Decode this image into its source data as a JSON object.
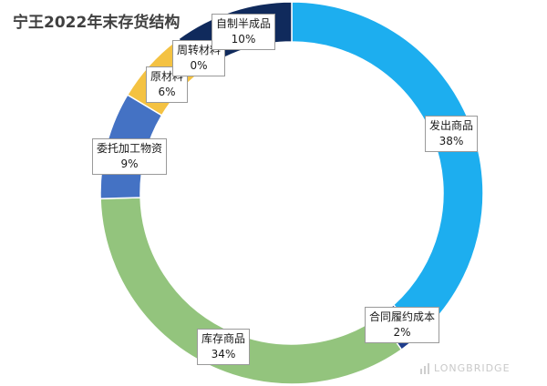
{
  "chart_data": {
    "type": "pie",
    "variant": "donut",
    "title": "宁王2022年末存货结构",
    "slices": [
      {
        "name": "发出商品",
        "value": 38,
        "label_pct": "38%",
        "color": "#1DAEEF"
      },
      {
        "name": "合同履约成本",
        "value": 2,
        "label_pct": "2%",
        "color": "#1F3D8C"
      },
      {
        "name": "库存商品",
        "value": 34,
        "label_pct": "34%",
        "color": "#93C47D"
      },
      {
        "name": "委托加工物资",
        "value": 9,
        "label_pct": "9%",
        "color": "#4472C4"
      },
      {
        "name": "原材料",
        "value": 6,
        "label_pct": "6%",
        "color": "#F4C242"
      },
      {
        "name": "周转材料",
        "value": 0.3,
        "label_pct": "0%",
        "color": "#7F7F7F"
      },
      {
        "name": "自制半成品",
        "value": 10,
        "label_pct": "10%",
        "color": "#102A5C"
      }
    ],
    "legend": "none",
    "data_labels": "callouts"
  },
  "watermark": {
    "text": "LONGBRIDGE"
  }
}
